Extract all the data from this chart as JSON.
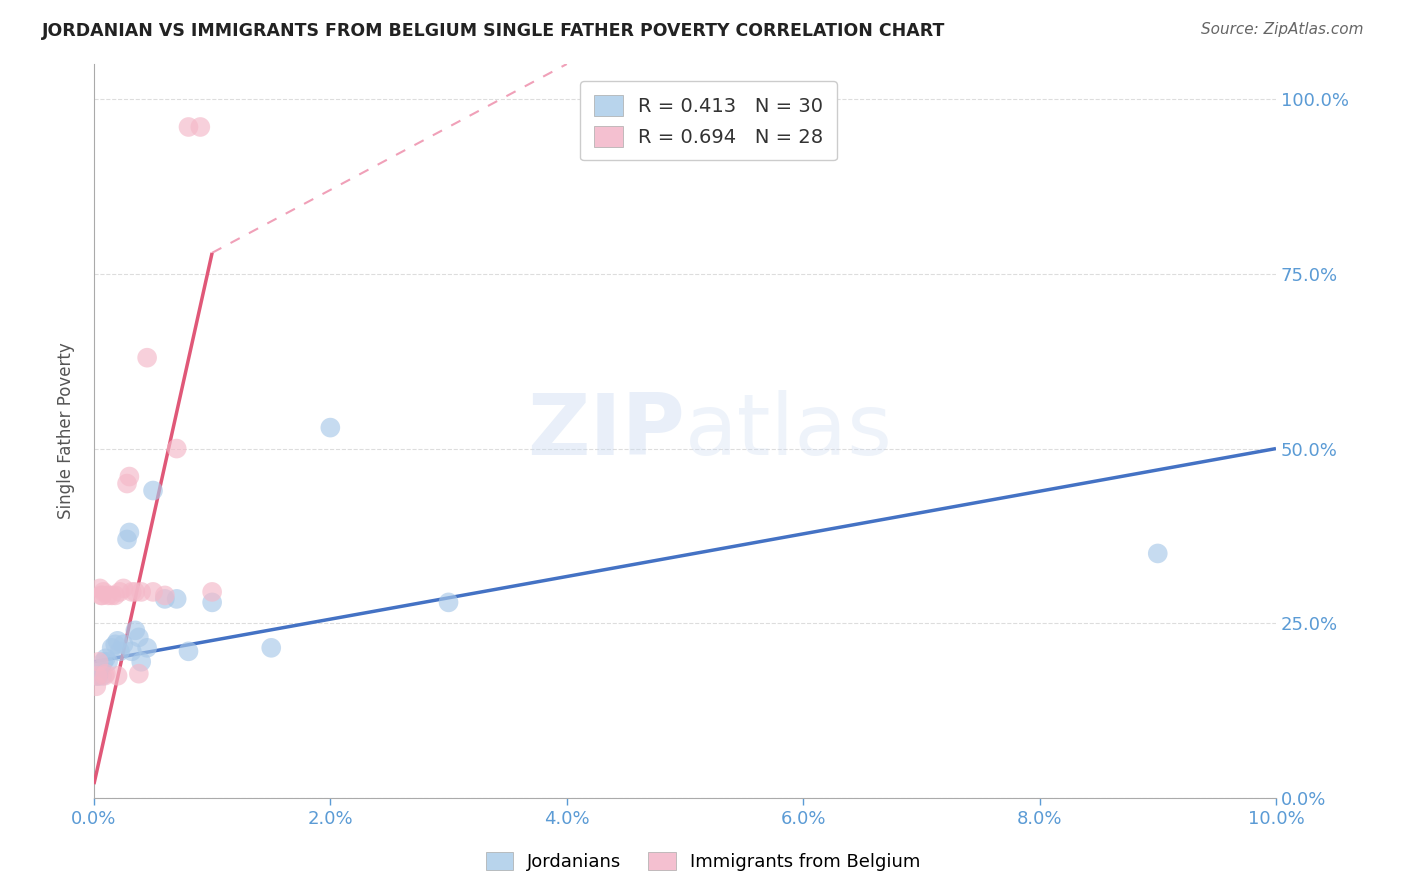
{
  "title": "JORDANIAN VS IMMIGRANTS FROM BELGIUM SINGLE FATHER POVERTY CORRELATION CHART",
  "source": "Source: ZipAtlas.com",
  "ylabel": "Single Father Poverty",
  "watermark": "ZIPatlas",
  "jordanians": {
    "color": "#7ab3d9",
    "scatter_color": "#a8c8e8",
    "R": 0.413,
    "N": 30,
    "x": [
      0.0002,
      0.0003,
      0.0004,
      0.0005,
      0.0006,
      0.0007,
      0.0008,
      0.001,
      0.0012,
      0.0015,
      0.0018,
      0.002,
      0.0022,
      0.0025,
      0.0028,
      0.003,
      0.0032,
      0.0035,
      0.0038,
      0.004,
      0.0045,
      0.005,
      0.006,
      0.007,
      0.008,
      0.01,
      0.015,
      0.02,
      0.03,
      0.09
    ],
    "y": [
      0.175,
      0.175,
      0.175,
      0.18,
      0.185,
      0.175,
      0.195,
      0.2,
      0.195,
      0.215,
      0.22,
      0.225,
      0.21,
      0.22,
      0.37,
      0.38,
      0.21,
      0.24,
      0.23,
      0.195,
      0.215,
      0.44,
      0.285,
      0.285,
      0.21,
      0.28,
      0.215,
      0.53,
      0.28,
      0.35
    ]
  },
  "belgians": {
    "color": "#e87898",
    "scatter_color": "#f4b8c8",
    "R": 0.694,
    "N": 28,
    "x": [
      0.0002,
      0.0003,
      0.0004,
      0.0005,
      0.0006,
      0.0007,
      0.0008,
      0.0009,
      0.001,
      0.0012,
      0.0015,
      0.0018,
      0.002,
      0.0022,
      0.0025,
      0.0028,
      0.003,
      0.0032,
      0.0035,
      0.0038,
      0.004,
      0.0045,
      0.005,
      0.006,
      0.007,
      0.008,
      0.009,
      0.01
    ],
    "y": [
      0.16,
      0.175,
      0.195,
      0.3,
      0.29,
      0.29,
      0.295,
      0.175,
      0.178,
      0.29,
      0.29,
      0.29,
      0.175,
      0.295,
      0.3,
      0.45,
      0.46,
      0.295,
      0.295,
      0.178,
      0.295,
      0.63,
      0.295,
      0.29,
      0.5,
      0.96,
      0.96,
      0.295
    ]
  },
  "jordan_line": {
    "x0": 0.0,
    "y0": 0.195,
    "x1": 0.1,
    "y1": 0.5
  },
  "belgium_line_solid": {
    "x0": 0.0,
    "y0": 0.02,
    "x1": 0.01,
    "y1": 0.78
  },
  "belgium_line_dash": {
    "x0": 0.01,
    "y0": 0.78,
    "x1": 0.04,
    "y1": 1.05
  },
  "xlim": [
    0,
    0.1
  ],
  "ylim": [
    0,
    1.05
  ],
  "x_ticks": [
    0.0,
    0.02,
    0.04,
    0.06,
    0.08,
    0.1
  ],
  "x_tick_labels": [
    "0.0%",
    "2.0%",
    "4.0%",
    "6.0%",
    "8.0%",
    "10.0%"
  ],
  "y_ticks": [
    0.0,
    0.25,
    0.5,
    0.75,
    1.0
  ],
  "y_tick_labels": [
    "0.0%",
    "25.0%",
    "50.0%",
    "75.0%",
    "100.0%"
  ],
  "background_color": "#ffffff",
  "grid_color": "#dddddd",
  "title_color": "#222222",
  "source_color": "#666666",
  "tick_label_color": "#5b9bd5",
  "legend_box_color_jord": "#b8d4ec",
  "legend_box_color_belg": "#f4c0d0"
}
